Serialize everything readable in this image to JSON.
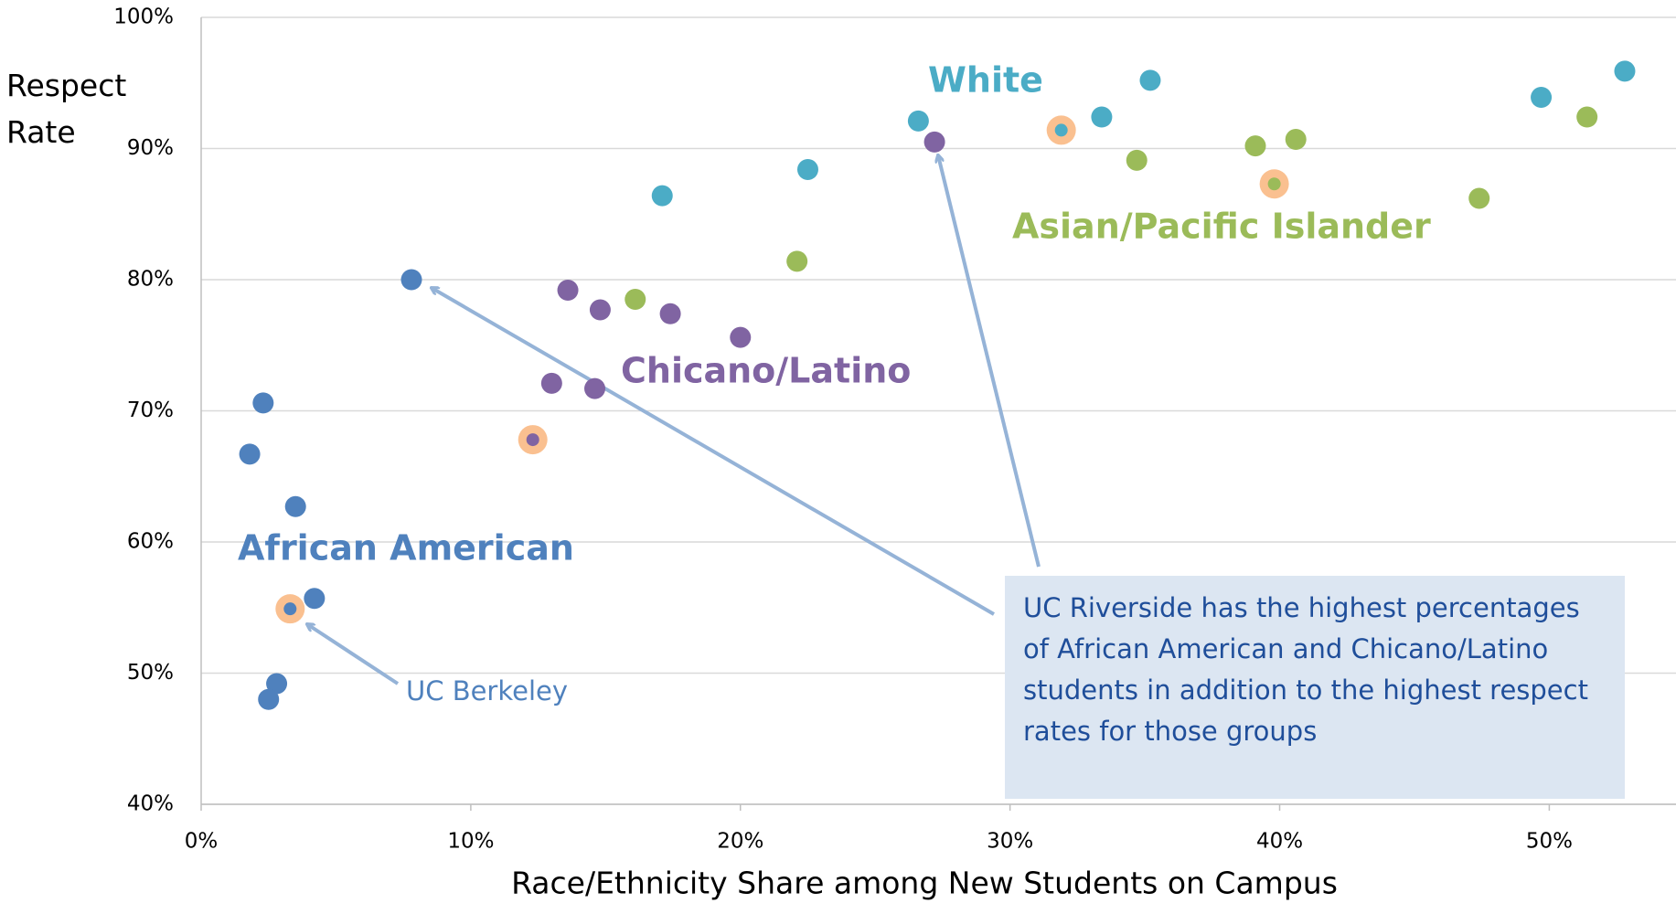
{
  "chart_data": {
    "type": "scatter",
    "x_label": "Race/Ethnicity Share among New Students on Campus",
    "y_label": "Respect Rate",
    "xlim": [
      0,
      54.7
    ],
    "ylim": [
      40,
      100
    ],
    "xticks": [
      {
        "value": 0,
        "label": "0%"
      },
      {
        "value": 10,
        "label": "10%"
      },
      {
        "value": 20,
        "label": "20%"
      },
      {
        "value": 30,
        "label": "30%"
      },
      {
        "value": 40,
        "label": "40%"
      },
      {
        "value": 50,
        "label": "50%"
      }
    ],
    "yticks": [
      {
        "value": 40,
        "label": "40%"
      },
      {
        "value": 50,
        "label": "50%"
      },
      {
        "value": 60,
        "label": "60%"
      },
      {
        "value": 70,
        "label": "70%"
      },
      {
        "value": 80,
        "label": "80%"
      },
      {
        "value": 90,
        "label": "90%"
      },
      {
        "value": 100,
        "label": "100%"
      }
    ],
    "grid": true,
    "highlight_color": "#fac090",
    "series": [
      {
        "name": "African American",
        "color": "#4f81bd",
        "x": [
          7.8,
          2.3,
          1.8,
          3.5,
          4.2,
          3.3,
          2.8,
          2.5
        ],
        "values": [
          80.0,
          70.6,
          66.7,
          62.7,
          55.7,
          54.9,
          49.2,
          48.0
        ],
        "highlight_index": 5
      },
      {
        "name": "Chicano/Latino",
        "color": "#8064a2",
        "x": [
          27.2,
          13.6,
          14.8,
          17.4,
          20.0,
          13.0,
          14.6,
          12.3
        ],
        "values": [
          90.5,
          79.2,
          77.7,
          77.4,
          75.6,
          72.1,
          71.7,
          67.8
        ],
        "highlight_index": 7
      },
      {
        "name": "White",
        "color": "#4bacc6",
        "x": [
          52.8,
          35.2,
          49.7,
          33.4,
          26.6,
          31.9,
          22.5,
          17.1
        ],
        "values": [
          95.9,
          95.2,
          93.9,
          92.4,
          92.1,
          91.4,
          88.4,
          86.4
        ],
        "highlight_index": 5
      },
      {
        "name": "Asian/Pacific Islander",
        "color": "#9bbb59",
        "x": [
          51.4,
          40.6,
          39.1,
          34.7,
          39.8,
          47.4,
          22.1,
          16.1
        ],
        "values": [
          92.4,
          90.7,
          90.2,
          89.1,
          87.3,
          86.2,
          81.4,
          78.5
        ],
        "highlight_index": 4
      }
    ],
    "annotations": {
      "berkeley": "UC Berkeley",
      "riverside": "UC Riverside has the highest percentages of African American and Chicano/Latino students in addition to the highest respect rates for those groups"
    }
  }
}
